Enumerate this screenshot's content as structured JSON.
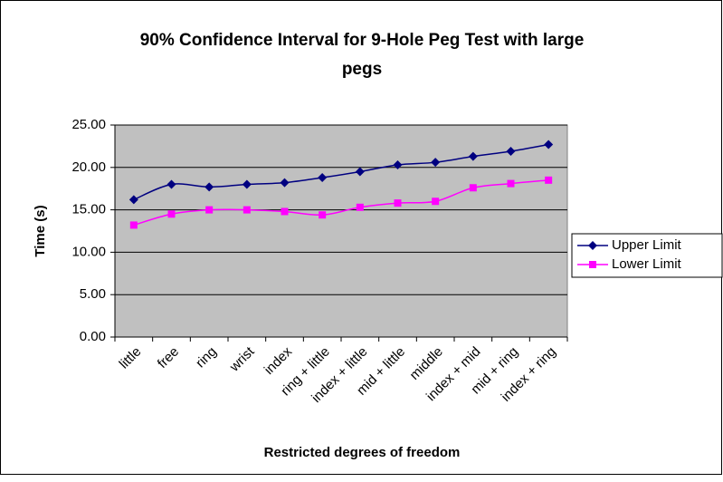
{
  "chart_data": {
    "type": "line",
    "title_lines": [
      "90% Confidence Interval for 9-Hole Peg Test with large",
      "pegs"
    ],
    "x_label": "Restricted degrees of freedom",
    "y_label": "Time (s)",
    "categories": [
      "little",
      "free",
      "ring",
      "wrist",
      "index",
      "ring + little",
      "index + little",
      "mid + little",
      "middle",
      "index + mid",
      "mid + ring",
      "index + ring"
    ],
    "series": [
      {
        "name": "Upper Limit",
        "color": "#000080",
        "marker": "diamond",
        "values": [
          16.2,
          18.0,
          17.7,
          18.0,
          18.2,
          18.8,
          19.5,
          20.3,
          20.6,
          21.3,
          21.9,
          22.7
        ]
      },
      {
        "name": "Lower Limit",
        "color": "#FF00FF",
        "marker": "square",
        "values": [
          13.2,
          14.5,
          15.0,
          15.0,
          14.8,
          14.4,
          15.3,
          15.8,
          16.0,
          17.6,
          18.1,
          18.5
        ]
      }
    ],
    "ylim": [
      0,
      25
    ],
    "yticks": [
      {
        "value": 0,
        "label": "0.00"
      },
      {
        "value": 5,
        "label": "5.00"
      },
      {
        "value": 10,
        "label": "10.00"
      },
      {
        "value": 15,
        "label": "15.00"
      },
      {
        "value": 20,
        "label": "20.00"
      },
      {
        "value": 25,
        "label": "25.00"
      }
    ],
    "grid": true,
    "smooth": true,
    "legend": "right"
  }
}
